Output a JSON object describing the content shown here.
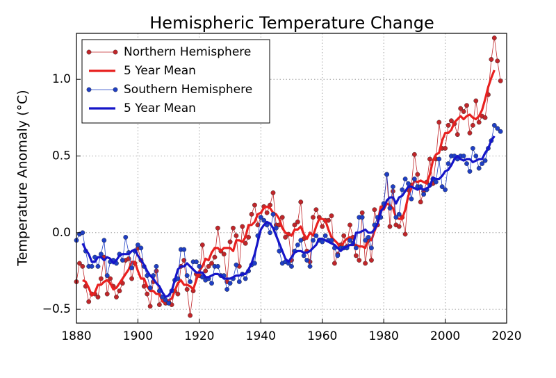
{
  "chart_data": {
    "type": "line",
    "title": "Hemispheric Temperature Change",
    "y_label": "Temperature Anomaly (°C)",
    "xlim": [
      1880,
      2020
    ],
    "ylim": [
      -0.59,
      1.3
    ],
    "xticks": [
      1880,
      1900,
      1920,
      1940,
      1960,
      1980,
      2000,
      2020
    ],
    "yticks": [
      {
        "value": -0.5,
        "label": "−0.5"
      },
      {
        "value": 0,
        "label": "0.0"
      },
      0.5,
      {
        "value": 1,
        "label": "1.0"
      }
    ],
    "grid": true,
    "legend": "upper left",
    "x": [
      1880,
      1881,
      1882,
      1883,
      1884,
      1885,
      1886,
      1887,
      1888,
      1889,
      1890,
      1891,
      1892,
      1893,
      1894,
      1895,
      1896,
      1897,
      1898,
      1899,
      1900,
      1901,
      1902,
      1903,
      1904,
      1905,
      1906,
      1907,
      1908,
      1909,
      1910,
      1911,
      1912,
      1913,
      1914,
      1915,
      1916,
      1917,
      1918,
      1919,
      1920,
      1921,
      1922,
      1923,
      1924,
      1925,
      1926,
      1927,
      1928,
      1929,
      1930,
      1931,
      1932,
      1933,
      1934,
      1935,
      1936,
      1937,
      1938,
      1939,
      1940,
      1941,
      1942,
      1943,
      1944,
      1945,
      1946,
      1947,
      1948,
      1949,
      1950,
      1951,
      1952,
      1953,
      1954,
      1955,
      1956,
      1957,
      1958,
      1959,
      1960,
      1961,
      1962,
      1963,
      1964,
      1965,
      1966,
      1967,
      1968,
      1969,
      1970,
      1971,
      1972,
      1973,
      1974,
      1975,
      1976,
      1977,
      1978,
      1979,
      1980,
      1981,
      1982,
      1983,
      1984,
      1985,
      1986,
      1987,
      1988,
      1989,
      1990,
      1991,
      1992,
      1993,
      1994,
      1995,
      1996,
      1997,
      1998,
      1999,
      2000,
      2001,
      2002,
      2003,
      2004,
      2005,
      2006,
      2007,
      2008,
      2009,
      2010,
      2011,
      2012,
      2013,
      2014,
      2015,
      2016,
      2017,
      2018
    ],
    "series": [
      {
        "name": "Northern Hemisphere",
        "color": "#c0262a",
        "marker": true,
        "width": 0.8,
        "values": [
          -0.32,
          -0.2,
          -0.22,
          -0.35,
          -0.45,
          -0.4,
          -0.4,
          -0.42,
          -0.3,
          -0.16,
          -0.4,
          -0.3,
          -0.35,
          -0.42,
          -0.38,
          -0.33,
          -0.18,
          -0.17,
          -0.3,
          -0.2,
          -0.1,
          -0.18,
          -0.35,
          -0.4,
          -0.48,
          -0.32,
          -0.25,
          -0.47,
          -0.42,
          -0.46,
          -0.45,
          -0.47,
          -0.38,
          -0.4,
          -0.22,
          -0.18,
          -0.37,
          -0.54,
          -0.38,
          -0.27,
          -0.28,
          -0.08,
          -0.25,
          -0.22,
          -0.2,
          -0.16,
          0.03,
          -0.12,
          -0.14,
          -0.32,
          -0.06,
          0.03,
          -0.02,
          -0.22,
          0.04,
          -0.07,
          -0.03,
          0.12,
          0.18,
          0.05,
          0.1,
          0.17,
          0.13,
          0.18,
          0.26,
          0.05,
          0.05,
          0.1,
          -0.03,
          -0.01,
          -0.18,
          0.05,
          0.07,
          0.2,
          -0.04,
          -0.12,
          -0.19,
          0.1,
          0.15,
          0.1,
          0.04,
          0.08,
          0.08,
          0.11,
          -0.2,
          -0.14,
          -0.08,
          -0.02,
          -0.09,
          0.05,
          -0.03,
          -0.15,
          -0.18,
          0.13,
          -0.2,
          -0.05,
          -0.18,
          0.15,
          0.05,
          0.1,
          0.18,
          0.38,
          0.04,
          0.27,
          0.05,
          0.04,
          0.1,
          -0.01,
          0.28,
          0.31,
          0.51,
          0.38,
          0.2,
          0.27,
          0.33,
          0.48,
          0.32,
          0.48,
          0.72,
          0.55,
          0.55,
          0.7,
          0.73,
          0.71,
          0.64,
          0.81,
          0.79,
          0.83,
          0.65,
          0.7,
          0.86,
          0.72,
          0.76,
          0.75,
          0.9,
          1.13,
          1.27,
          1.12,
          0.99
        ]
      },
      {
        "name": "5 Year Mean",
        "color": "#e8201f",
        "marker": false,
        "width": 3.2,
        "values": [
          null,
          null,
          -0.31,
          -0.32,
          -0.36,
          -0.41,
          -0.39,
          -0.34,
          -0.34,
          -0.32,
          -0.31,
          -0.33,
          -0.37,
          -0.36,
          -0.33,
          -0.3,
          -0.27,
          -0.24,
          -0.19,
          -0.19,
          -0.25,
          -0.3,
          -0.3,
          -0.35,
          -0.38,
          -0.38,
          -0.4,
          -0.4,
          -0.45,
          -0.45,
          -0.44,
          -0.43,
          -0.38,
          -0.33,
          -0.31,
          -0.34,
          -0.34,
          -0.35,
          -0.37,
          -0.31,
          -0.25,
          -0.22,
          -0.17,
          -0.18,
          -0.13,
          -0.1,
          -0.1,
          -0.12,
          -0.1,
          -0.1,
          -0.1,
          -0.12,
          -0.05,
          -0.05,
          -0.06,
          -0.03,
          0.05,
          0.05,
          0.07,
          0.12,
          0.13,
          0.16,
          0.17,
          0.16,
          0.13,
          0.12,
          0.09,
          0.03,
          0.0,
          -0.01,
          -0.02,
          0.02,
          0.02,
          0.04,
          -0.01,
          -0.04,
          0.0,
          -0.02,
          0.04,
          0.09,
          0.09,
          0.08,
          0.02,
          -0.03,
          -0.05,
          -0.07,
          -0.11,
          -0.06,
          -0.04,
          -0.03,
          -0.08,
          -0.08,
          -0.09,
          -0.09,
          -0.1,
          -0.03,
          -0.05,
          0.01,
          0.06,
          0.17,
          0.15,
          0.19,
          0.18,
          0.16,
          0.1,
          0.09,
          0.09,
          0.15,
          0.24,
          0.29,
          0.34,
          0.33,
          0.34,
          0.33,
          0.32,
          0.38,
          0.47,
          0.51,
          0.52,
          0.6,
          0.65,
          0.65,
          0.67,
          0.72,
          0.74,
          0.76,
          0.74,
          0.76,
          0.77,
          0.75,
          0.74,
          0.76,
          0.8,
          0.87,
          0.95,
          1.01,
          1.06,
          null,
          null
        ]
      },
      {
        "name": "Southern Hemisphere",
        "color": "#1f3fc4",
        "marker": true,
        "width": 0.8,
        "values": [
          -0.05,
          -0.01,
          0.0,
          -0.12,
          -0.22,
          -0.22,
          -0.16,
          -0.22,
          -0.14,
          -0.05,
          -0.28,
          -0.19,
          -0.18,
          -0.2,
          -0.14,
          -0.18,
          -0.03,
          -0.13,
          -0.23,
          -0.12,
          -0.08,
          -0.1,
          -0.22,
          -0.28,
          -0.36,
          -0.28,
          -0.22,
          -0.38,
          -0.42,
          -0.44,
          -0.46,
          -0.38,
          -0.31,
          -0.3,
          -0.11,
          -0.11,
          -0.28,
          -0.32,
          -0.19,
          -0.19,
          -0.22,
          -0.29,
          -0.31,
          -0.3,
          -0.33,
          -0.22,
          -0.22,
          -0.28,
          -0.28,
          -0.37,
          -0.33,
          -0.3,
          -0.21,
          -0.32,
          -0.27,
          -0.3,
          -0.25,
          -0.21,
          -0.2,
          -0.02,
          0.1,
          0.08,
          0.05,
          0.0,
          0.12,
          0.03,
          -0.12,
          -0.2,
          -0.19,
          -0.2,
          -0.22,
          -0.12,
          -0.08,
          -0.05,
          -0.15,
          -0.18,
          -0.22,
          -0.05,
          -0.02,
          -0.05,
          -0.06,
          -0.02,
          -0.05,
          -0.05,
          -0.1,
          -0.15,
          -0.1,
          -0.1,
          -0.1,
          -0.05,
          -0.07,
          -0.1,
          0.1,
          0.1,
          -0.05,
          -0.03,
          -0.1,
          0.05,
          0.1,
          0.1,
          0.19,
          0.38,
          0.16,
          0.3,
          0.1,
          0.12,
          0.28,
          0.35,
          0.32,
          0.22,
          0.35,
          0.3,
          0.3,
          0.25,
          0.28,
          0.31,
          0.35,
          0.33,
          0.48,
          0.3,
          0.28,
          0.45,
          0.5,
          0.5,
          0.48,
          0.5,
          0.5,
          0.45,
          0.4,
          0.55,
          0.5,
          0.42,
          0.45,
          0.47,
          0.55,
          0.6,
          0.7,
          0.68,
          0.66
        ]
      },
      {
        "name": "5 Year Mean",
        "color": "#1515c8",
        "marker": false,
        "width": 3.2,
        "values": [
          null,
          null,
          -0.07,
          -0.11,
          -0.14,
          -0.19,
          -0.19,
          -0.16,
          -0.16,
          -0.18,
          -0.16,
          -0.17,
          -0.2,
          -0.18,
          -0.15,
          -0.14,
          -0.14,
          -0.14,
          -0.12,
          -0.11,
          -0.15,
          -0.18,
          -0.21,
          -0.25,
          -0.28,
          -0.3,
          -0.33,
          -0.35,
          -0.39,
          -0.42,
          -0.41,
          -0.38,
          -0.31,
          -0.24,
          -0.22,
          -0.22,
          -0.2,
          -0.22,
          -0.24,
          -0.26,
          -0.26,
          -0.26,
          -0.29,
          -0.29,
          -0.28,
          -0.27,
          -0.27,
          -0.28,
          -0.3,
          -0.3,
          -0.3,
          -0.29,
          -0.28,
          -0.28,
          -0.27,
          -0.27,
          -0.24,
          -0.2,
          -0.14,
          -0.06,
          0.02,
          0.05,
          0.07,
          0.06,
          0.03,
          -0.02,
          -0.07,
          -0.12,
          -0.17,
          -0.19,
          -0.16,
          -0.13,
          -0.12,
          -0.12,
          -0.13,
          -0.13,
          -0.12,
          -0.1,
          -0.08,
          -0.04,
          -0.04,
          -0.05,
          -0.06,
          -0.07,
          -0.08,
          -0.1,
          -0.12,
          -0.1,
          -0.09,
          -0.08,
          -0.08,
          0.0,
          0.0,
          0.01,
          0.02,
          0.0,
          0.0,
          0.02,
          0.06,
          0.14,
          0.16,
          0.21,
          0.23,
          0.23,
          0.19,
          0.23,
          0.24,
          0.27,
          0.3,
          0.3,
          0.29,
          0.28,
          0.29,
          0.28,
          0.29,
          0.3,
          0.36,
          0.35,
          0.35,
          0.37,
          0.4,
          0.41,
          0.44,
          0.48,
          0.5,
          0.48,
          0.47,
          0.48,
          0.48,
          0.46,
          0.47,
          0.48,
          0.48,
          0.52,
          0.55,
          0.6,
          0.63,
          null,
          null
        ]
      }
    ]
  }
}
